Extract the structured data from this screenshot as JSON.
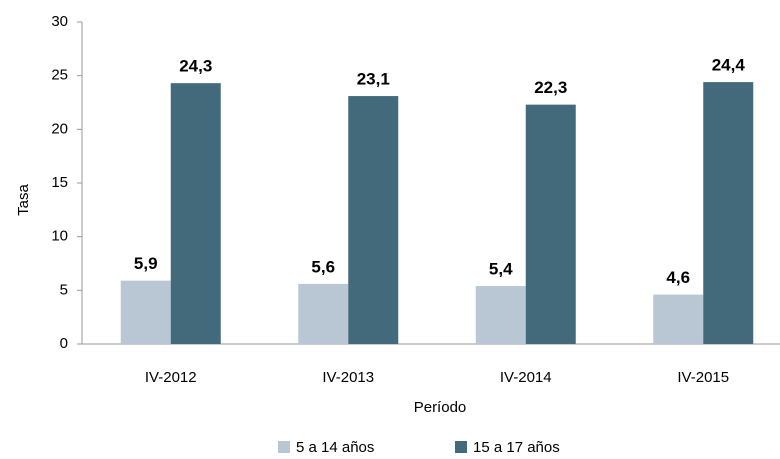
{
  "chart_data": {
    "type": "bar",
    "x_label": "Período",
    "y_label": "Tasa",
    "categories": [
      "IV-2012",
      "IV-2013",
      "IV-2014",
      "IV-2015"
    ],
    "series": [
      {
        "name": "5 a 14 años",
        "color": "#b8c7d3",
        "values": [
          5.9,
          5.6,
          5.4,
          4.6
        ],
        "value_labels": [
          "5,9",
          "5,6",
          "5,4",
          "4,6"
        ]
      },
      {
        "name": "15 a 17 años",
        "color": "#426a7b",
        "values": [
          24.3,
          23.1,
          22.3,
          24.4
        ],
        "value_labels": [
          "24,3",
          "23,1",
          "22,3",
          "24,4"
        ]
      }
    ],
    "ylim": [
      0,
      30
    ],
    "yticks": [
      0,
      5,
      10,
      15,
      20,
      25,
      30
    ],
    "grid": false,
    "legend": "bottom"
  }
}
